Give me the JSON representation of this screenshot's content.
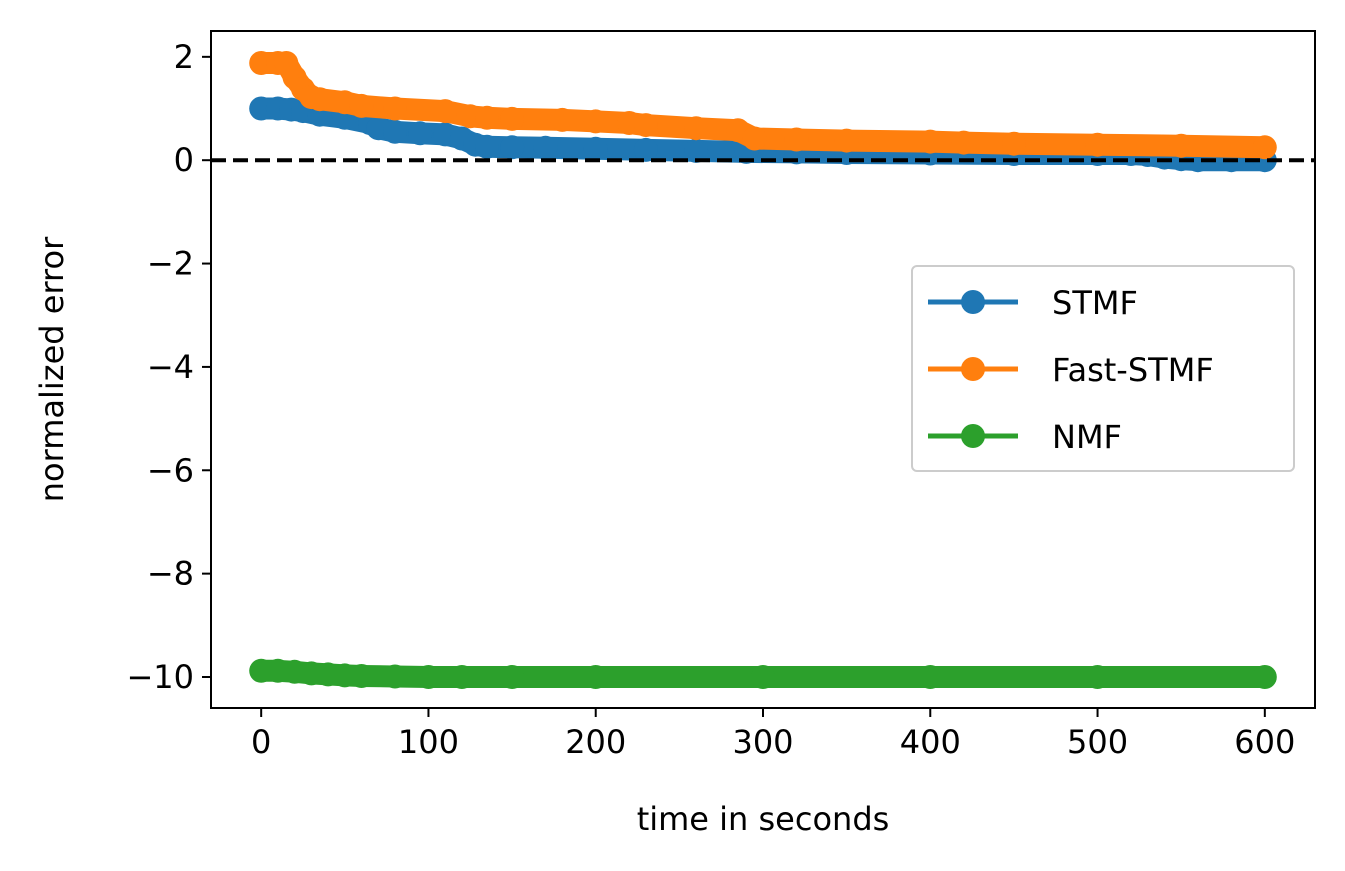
{
  "chart_data": {
    "type": "line",
    "xlabel": "time in seconds",
    "ylabel": "normalized error",
    "xlim": [
      -30,
      630
    ],
    "ylim": [
      -10.6,
      2.5
    ],
    "xticks": [
      0,
      100,
      200,
      300,
      400,
      500,
      600
    ],
    "yticks": [
      2,
      0,
      -2,
      -4,
      -6,
      -8,
      -10
    ],
    "xtick_labels": [
      "0",
      "100",
      "200",
      "300",
      "400",
      "500",
      "600"
    ],
    "ytick_labels": [
      "2",
      "0",
      "−2",
      "−4",
      "−6",
      "−8",
      "−10"
    ],
    "grid": false,
    "legend_position": "center-right",
    "reference_line": {
      "y": 0,
      "style": "dashed",
      "color": "#000000"
    },
    "series": [
      {
        "name": "STMF",
        "color": "#1f77b4",
        "x": [
          0,
          10,
          18,
          25,
          35,
          50,
          65,
          70,
          80,
          95,
          110,
          120,
          128,
          135,
          150,
          170,
          200,
          230,
          260,
          290,
          320,
          350,
          400,
          450,
          500,
          520,
          530,
          540,
          550,
          560,
          580,
          600
        ],
        "y": [
          1.0,
          1.0,
          0.98,
          0.95,
          0.88,
          0.82,
          0.72,
          0.62,
          0.55,
          0.52,
          0.5,
          0.42,
          0.3,
          0.26,
          0.25,
          0.24,
          0.22,
          0.2,
          0.18,
          0.16,
          0.15,
          0.14,
          0.13,
          0.12,
          0.12,
          0.12,
          0.1,
          0.05,
          0.02,
          0.0,
          0.0,
          0.0
        ]
      },
      {
        "name": "Fast-STMF",
        "color": "#ff7f0e",
        "x": [
          0,
          10,
          15,
          20,
          25,
          30,
          35,
          50,
          60,
          80,
          110,
          125,
          135,
          150,
          180,
          200,
          220,
          230,
          260,
          285,
          295,
          320,
          350,
          400,
          420,
          450,
          500,
          550,
          600
        ],
        "y": [
          1.88,
          1.88,
          1.88,
          1.6,
          1.38,
          1.22,
          1.18,
          1.12,
          1.05,
          1.0,
          0.95,
          0.85,
          0.82,
          0.8,
          0.78,
          0.75,
          0.72,
          0.68,
          0.62,
          0.58,
          0.42,
          0.4,
          0.38,
          0.36,
          0.34,
          0.32,
          0.3,
          0.28,
          0.25
        ]
      },
      {
        "name": "NMF",
        "color": "#2ca02c",
        "x": [
          0,
          10,
          20,
          30,
          40,
          50,
          60,
          80,
          100,
          120,
          150,
          200,
          300,
          400,
          500,
          600
        ],
        "y": [
          -9.88,
          -9.88,
          -9.9,
          -9.93,
          -9.95,
          -9.97,
          -9.98,
          -9.99,
          -10.0,
          -10.0,
          -10.0,
          -10.0,
          -10.0,
          -10.0,
          -10.0,
          -10.0
        ]
      }
    ]
  }
}
